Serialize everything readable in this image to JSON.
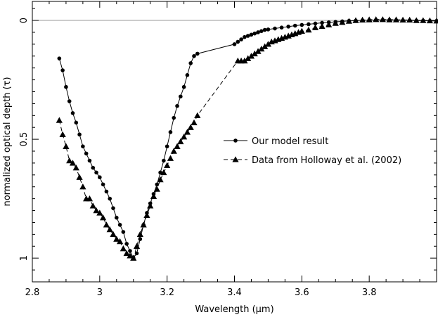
{
  "chart_data": {
    "type": "line",
    "xlabel": "Wavelength (μm)",
    "ylabel": "normalized optical depth (τ)",
    "xlim": [
      2.8,
      4.0
    ],
    "ylim": [
      1.1,
      -0.08
    ],
    "y_inverted": true,
    "x_ticks": [
      2.8,
      3.0,
      3.2,
      3.4,
      3.6,
      3.8
    ],
    "x_tick_labels": [
      "2.8",
      "3",
      "3.2",
      "3.4",
      "3.6",
      "3.8"
    ],
    "y_ticks": [
      0,
      0.5,
      1
    ],
    "y_tick_labels": [
      "0",
      "0.5",
      "1"
    ],
    "reference_line_y": 0,
    "legend_position": "right",
    "series": [
      {
        "name": "Our model result",
        "marker": "circle",
        "line_style": "solid",
        "color": "#000000",
        "x": [
          2.88,
          2.89,
          2.9,
          2.91,
          2.92,
          2.93,
          2.94,
          2.95,
          2.96,
          2.97,
          2.98,
          2.99,
          3.0,
          3.01,
          3.02,
          3.03,
          3.04,
          3.05,
          3.06,
          3.07,
          3.08,
          3.09,
          3.1,
          3.11,
          3.12,
          3.13,
          3.14,
          3.15,
          3.16,
          3.17,
          3.18,
          3.19,
          3.2,
          3.21,
          3.22,
          3.23,
          3.24,
          3.25,
          3.26,
          3.27,
          3.28,
          3.29,
          3.4,
          3.41,
          3.42,
          3.43,
          3.44,
          3.45,
          3.46,
          3.47,
          3.48,
          3.49,
          3.5,
          3.52,
          3.54,
          3.56,
          3.58,
          3.6,
          3.62,
          3.64,
          3.66,
          3.68,
          3.7,
          3.72,
          3.74,
          3.76,
          3.78,
          3.8,
          3.82,
          3.84,
          3.86,
          3.88,
          3.9,
          3.92,
          3.94,
          3.96,
          3.98,
          4.0
        ],
        "y": [
          0.16,
          0.21,
          0.28,
          0.34,
          0.39,
          0.43,
          0.48,
          0.53,
          0.56,
          0.59,
          0.62,
          0.64,
          0.66,
          0.69,
          0.72,
          0.75,
          0.79,
          0.83,
          0.86,
          0.89,
          0.94,
          0.97,
          1.0,
          0.98,
          0.92,
          0.86,
          0.81,
          0.77,
          0.73,
          0.69,
          0.64,
          0.59,
          0.53,
          0.47,
          0.41,
          0.36,
          0.32,
          0.28,
          0.23,
          0.18,
          0.15,
          0.14,
          0.1,
          0.09,
          0.08,
          0.07,
          0.065,
          0.06,
          0.055,
          0.05,
          0.045,
          0.04,
          0.038,
          0.034,
          0.03,
          0.026,
          0.022,
          0.019,
          0.016,
          0.013,
          0.01,
          0.008,
          0.006,
          0.004,
          0.002,
          0.001,
          0.0,
          -0.001,
          -0.002,
          -0.002,
          -0.002,
          -0.001,
          0.0,
          0.0,
          0.001,
          0.001,
          0.002,
          0.002
        ]
      },
      {
        "name": "Data from Holloway et al. (2002)",
        "marker": "triangle",
        "line_style": "dashed",
        "color": "#000000",
        "x": [
          2.88,
          2.89,
          2.9,
          2.91,
          2.92,
          2.93,
          2.94,
          2.95,
          2.96,
          2.97,
          2.98,
          2.99,
          3.0,
          3.01,
          3.02,
          3.03,
          3.04,
          3.05,
          3.06,
          3.07,
          3.08,
          3.09,
          3.1,
          3.11,
          3.12,
          3.13,
          3.14,
          3.15,
          3.16,
          3.17,
          3.18,
          3.19,
          3.2,
          3.21,
          3.22,
          3.23,
          3.24,
          3.25,
          3.26,
          3.27,
          3.28,
          3.29,
          3.41,
          3.42,
          3.43,
          3.44,
          3.45,
          3.46,
          3.47,
          3.48,
          3.49,
          3.5,
          3.51,
          3.52,
          3.53,
          3.54,
          3.55,
          3.56,
          3.57,
          3.58,
          3.59,
          3.6,
          3.62,
          3.64,
          3.66,
          3.68,
          3.7,
          3.72,
          3.74,
          3.76,
          3.78,
          3.8,
          3.82,
          3.84,
          3.86,
          3.88,
          3.9,
          3.92,
          3.94,
          3.96,
          3.98,
          4.0
        ],
        "y": [
          0.42,
          0.48,
          0.53,
          0.59,
          0.6,
          0.62,
          0.66,
          0.7,
          0.75,
          0.75,
          0.78,
          0.8,
          0.81,
          0.83,
          0.86,
          0.88,
          0.9,
          0.92,
          0.93,
          0.96,
          0.98,
          0.99,
          1.0,
          0.95,
          0.9,
          0.86,
          0.82,
          0.78,
          0.74,
          0.71,
          0.67,
          0.64,
          0.61,
          0.58,
          0.55,
          0.53,
          0.51,
          0.49,
          0.47,
          0.45,
          0.43,
          0.4,
          0.17,
          0.17,
          0.17,
          0.16,
          0.15,
          0.14,
          0.13,
          0.12,
          0.11,
          0.1,
          0.09,
          0.085,
          0.08,
          0.075,
          0.07,
          0.065,
          0.06,
          0.055,
          0.05,
          0.045,
          0.04,
          0.03,
          0.025,
          0.018,
          0.012,
          0.008,
          0.003,
          0.0,
          -0.002,
          -0.003,
          -0.004,
          -0.004,
          -0.003,
          -0.003,
          -0.002,
          -0.002,
          0.0,
          0.0,
          0.001,
          0.002
        ]
      }
    ]
  }
}
